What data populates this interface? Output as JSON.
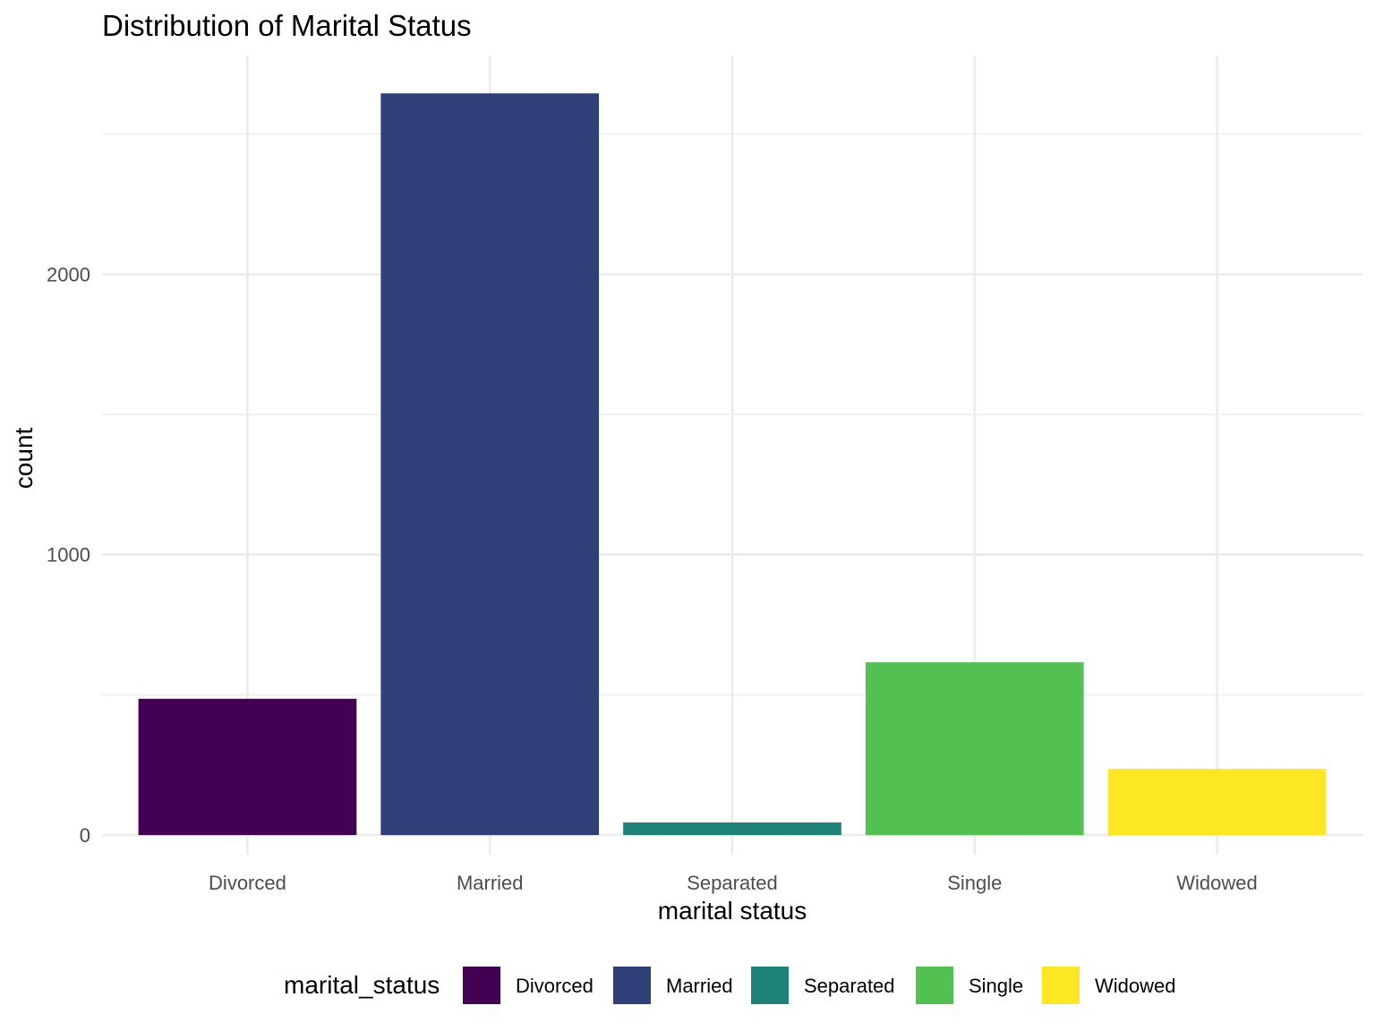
{
  "chart_data": {
    "type": "bar",
    "title": "Distribution of Marital Status",
    "xlabel": "marital status",
    "ylabel": "count",
    "categories": [
      "Divorced",
      "Married",
      "Separated",
      "Single",
      "Widowed"
    ],
    "values": [
      486,
      2645,
      45,
      616,
      236
    ],
    "colors": [
      "#440154",
      "#2f3f78",
      "#1f8278",
      "#52c152",
      "#fde725"
    ],
    "ylim": [
      -70,
      2780
    ],
    "yticks": [
      0,
      1000,
      2000
    ],
    "ytick_labels": [
      "0",
      "1000",
      "2000"
    ],
    "y_minor_ticks": [
      500,
      1500,
      2500
    ],
    "grid": true,
    "legend": {
      "title": "marital_status",
      "position": "bottom",
      "items": [
        "Divorced",
        "Married",
        "Separated",
        "Single",
        "Widowed"
      ]
    }
  }
}
